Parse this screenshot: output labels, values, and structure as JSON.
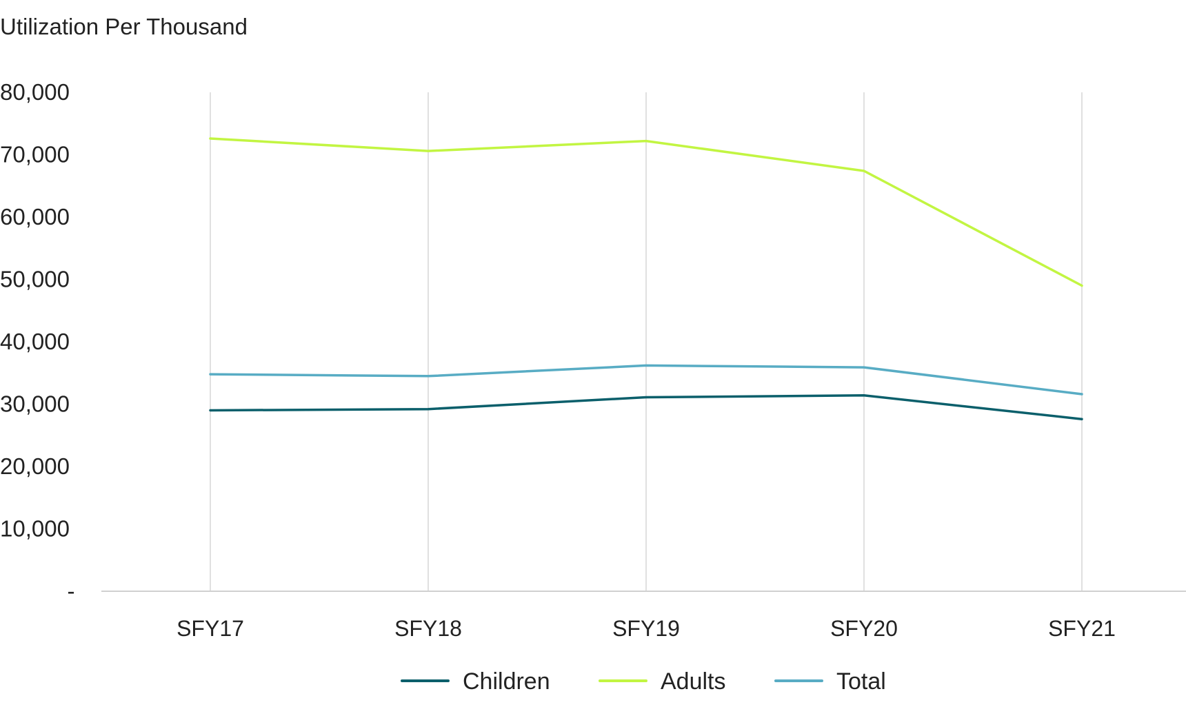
{
  "chart_data": {
    "type": "line",
    "title": "",
    "ylabel": "Utilization Per Thousand",
    "xlabel": "",
    "categories": [
      "SFY17",
      "SFY18",
      "SFY19",
      "SFY20",
      "SFY21"
    ],
    "ylim": [
      0,
      80000
    ],
    "yticks": [
      {
        "value": 0,
        "label": "-"
      },
      {
        "value": 10000,
        "label": "10,000"
      },
      {
        "value": 20000,
        "label": "20,000"
      },
      {
        "value": 30000,
        "label": "30,000"
      },
      {
        "value": 40000,
        "label": "40,000"
      },
      {
        "value": 50000,
        "label": "50,000"
      },
      {
        "value": 60000,
        "label": "60,000"
      },
      {
        "value": 70000,
        "label": "70,000"
      },
      {
        "value": 80000,
        "label": "80,000"
      }
    ],
    "series": [
      {
        "name": "Children",
        "color": "#0b5f6b",
        "values": [
          29000,
          29200,
          31100,
          31400,
          27600
        ]
      },
      {
        "name": "Adults",
        "color": "#c2f542",
        "values": [
          72600,
          70600,
          72200,
          67400,
          49000
        ]
      },
      {
        "name": "Total",
        "color": "#58acc4",
        "values": [
          34800,
          34500,
          36200,
          35900,
          31600
        ]
      }
    ],
    "grid": {
      "vertical": true,
      "horizontal": false
    },
    "legend": {
      "position": "bottom"
    }
  }
}
